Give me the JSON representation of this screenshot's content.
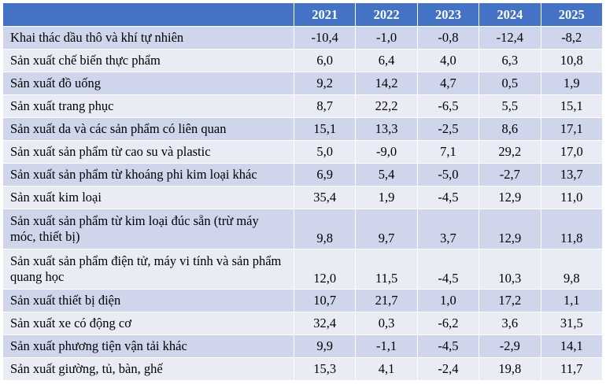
{
  "header": {
    "years": [
      "2021",
      "2022",
      "2023",
      "2024",
      "2025"
    ]
  },
  "rows": [
    {
      "label": "Khai thác dầu thô và khí tự nhiên",
      "values": [
        "-10,4",
        "-1,0",
        "-0,8",
        "-12,4",
        "-8,2"
      ]
    },
    {
      "label": "Sản xuất chế biến thực phẩm",
      "values": [
        "6,0",
        "6,4",
        "4,0",
        "6,3",
        "10,8"
      ]
    },
    {
      "label": "Sản xuất đồ uống",
      "values": [
        "9,2",
        "14,2",
        "4,7",
        "0,5",
        "1,9"
      ]
    },
    {
      "label": "Sản xuất trang phục",
      "values": [
        "8,7",
        "22,2",
        "-6,5",
        "5,5",
        "15,1"
      ]
    },
    {
      "label": "Sản xuất da và các sản phẩm có liên quan",
      "values": [
        "15,1",
        "13,3",
        "-2,5",
        "8,6",
        "17,1"
      ]
    },
    {
      "label": "Sản xuất sản phẩm từ cao su và plastic",
      "values": [
        "5,0",
        "-9,0",
        "7,1",
        "29,2",
        "17,0"
      ]
    },
    {
      "label": "Sản xuất sản phẩm từ khoáng phi kim loại khác",
      "values": [
        "6,9",
        "5,4",
        "-5,0",
        "-2,7",
        "13,7"
      ]
    },
    {
      "label": "Sản xuất kim loại",
      "values": [
        "35,4",
        "1,9",
        "-4,5",
        "12,9",
        "11,0"
      ]
    },
    {
      "label": "Sản xuất sản phẩm từ kim loại đúc sẵn (trừ máy móc, thiết bị)",
      "values": [
        "9,8",
        "9,7",
        "3,7",
        "12,9",
        "11,8"
      ]
    },
    {
      "label": "Sản xuất sản phẩm điện tử, máy vi tính và sản phẩm quang học",
      "values": [
        "12,0",
        "11,5",
        "-4,5",
        "10,3",
        "9,8"
      ]
    },
    {
      "label": "Sản xuất thiết bị điện",
      "values": [
        "10,7",
        "21,7",
        "1,0",
        "17,2",
        "1,1"
      ]
    },
    {
      "label": "Sản xuất xe có động cơ",
      "values": [
        "32,4",
        "0,3",
        "-6,2",
        "3,6",
        "31,5"
      ]
    },
    {
      "label": "Sản xuất phương tiện vận tải khác",
      "values": [
        "9,9",
        "-1,1",
        "-4,5",
        "-2,9",
        "14,1"
      ]
    },
    {
      "label": "Sản xuất giường, tủ, bàn, ghế",
      "values": [
        "15,3",
        "4,1",
        "-2,4",
        "19,8",
        "11,7"
      ]
    }
  ],
  "colors": {
    "header_bg": "#4472c4",
    "row_dark": "#cfd5ea",
    "row_light": "#e9ebf5"
  }
}
